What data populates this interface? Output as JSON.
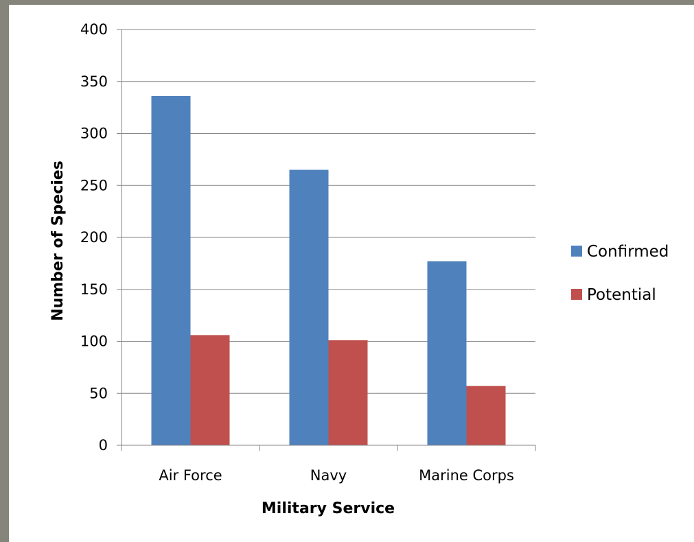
{
  "chart_data": {
    "type": "bar",
    "categories": [
      "Air Force",
      "Navy",
      "Marine Corps"
    ],
    "series": [
      {
        "name": "Confirmed",
        "values": [
          336,
          265,
          177
        ],
        "color": "#4f81bd"
      },
      {
        "name": "Potential",
        "values": [
          106,
          101,
          57
        ],
        "color": "#c0504d"
      }
    ],
    "title": "",
    "xlabel": "Military Service",
    "ylabel": "Number of Species",
    "ylim": [
      0,
      400
    ],
    "yticks": [
      0,
      50,
      100,
      150,
      200,
      250,
      300,
      350,
      400
    ],
    "grid": true,
    "legend_position": "right"
  }
}
